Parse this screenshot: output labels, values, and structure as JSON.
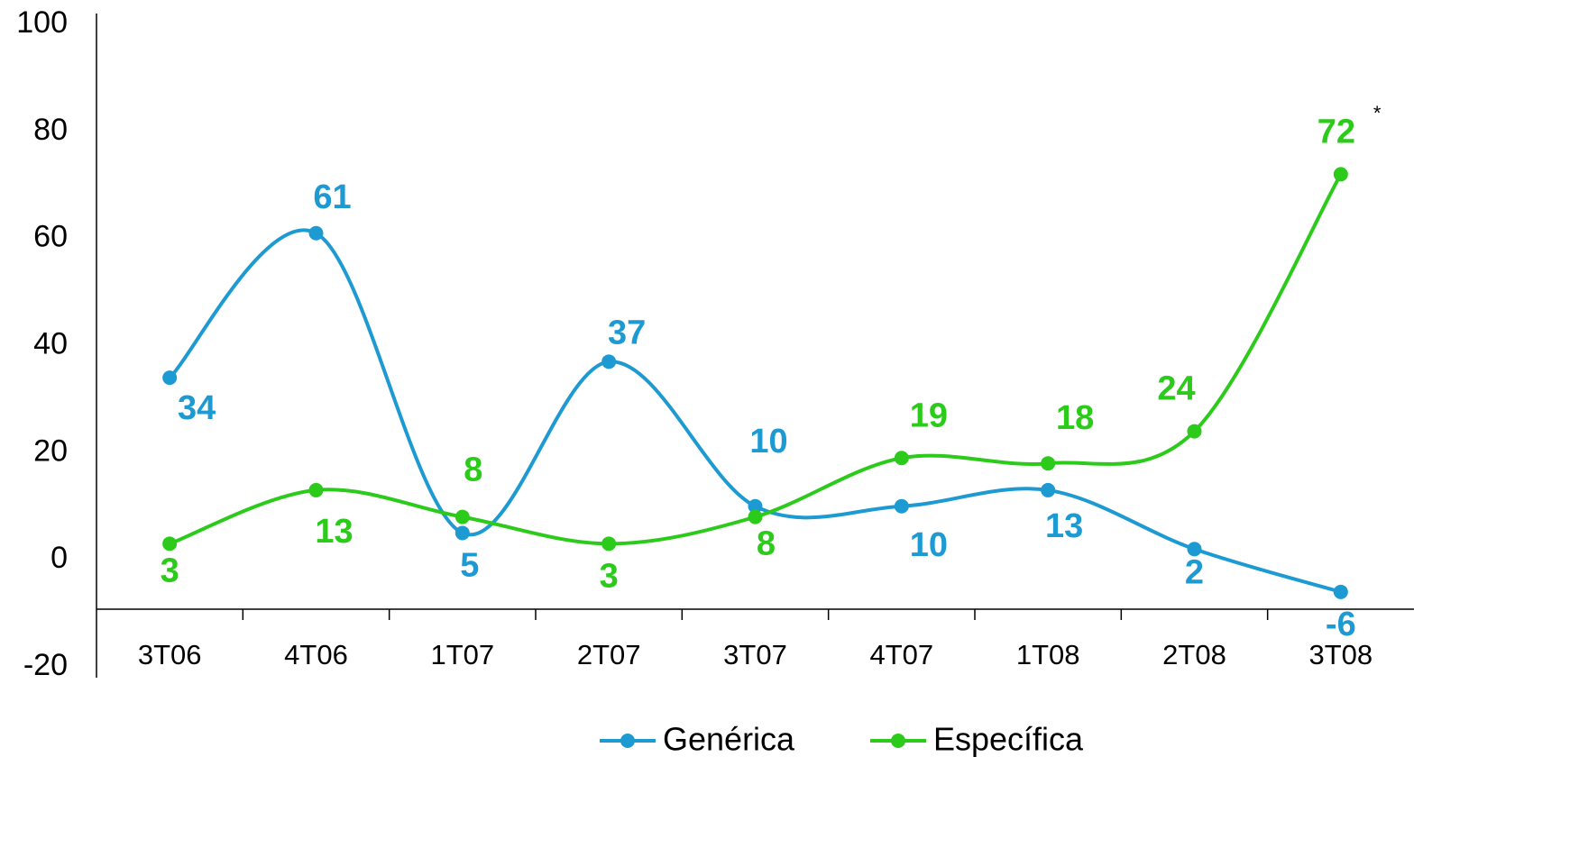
{
  "chart_data": {
    "type": "line",
    "categories": [
      "3T06",
      "4T06",
      "1T07",
      "2T07",
      "3T07",
      "4T07",
      "1T08",
      "2T08",
      "3T08"
    ],
    "series": [
      {
        "name": "Genérica",
        "color": "#1e9ad3",
        "values": [
          34,
          61,
          5,
          37,
          10,
          10,
          13,
          2,
          -6
        ]
      },
      {
        "name": "Específica",
        "color": "#2ccb1b",
        "values": [
          3,
          13,
          8,
          3,
          8,
          19,
          18,
          24,
          72
        ]
      }
    ],
    "annotation": "*",
    "ylim": [
      -20,
      100
    ],
    "yticks": [
      -20,
      0,
      20,
      40,
      60,
      80,
      100
    ],
    "smooth": true,
    "markers": true,
    "data_labels": true,
    "legend": "bottom"
  }
}
